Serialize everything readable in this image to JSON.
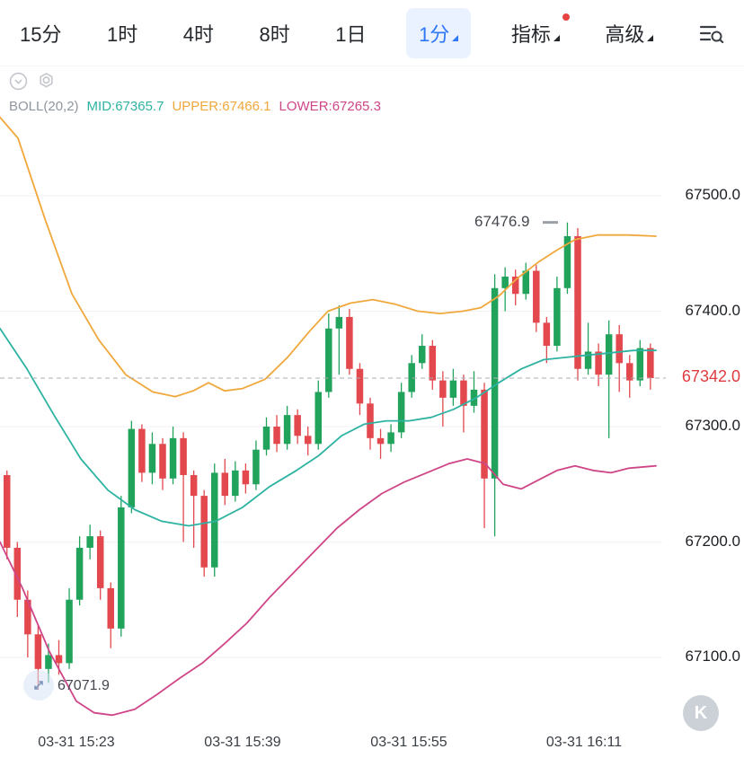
{
  "toolbar": {
    "timeframes": [
      {
        "label": "15分",
        "selected": false
      },
      {
        "label": "1时",
        "selected": false
      },
      {
        "label": "4时",
        "selected": false
      },
      {
        "label": "8时",
        "selected": false
      },
      {
        "label": "1日",
        "selected": false
      },
      {
        "label": "1分",
        "selected": true
      }
    ],
    "indicator_menu": "指标",
    "advanced_menu": "高级"
  },
  "chart": {
    "legend": {
      "name": "BOLL(20,2)",
      "mid": "MID:67365.7",
      "upper": "UPPER:67466.1",
      "lower": "LOWER:67265.3"
    },
    "current_price_label": "67342.0",
    "high_label": "67476.9",
    "low_label": "67071.9",
    "y_axis": [
      "67500.0",
      "67400.0",
      "67300.0",
      "67200.0",
      "67100.0"
    ],
    "x_axis": [
      "03-31 15:23",
      "03-31 15:39",
      "03-31 15:55",
      "03-31 16:11"
    ],
    "watermark": "K"
  },
  "colors": {
    "accent_blue": "#2e77f6",
    "tab_selected_bg": "#e9f2fe",
    "notification_dot": "#e64242",
    "candle_up": "#21a35c",
    "candle_down": "#e2484d",
    "band_upper": "#f0a83c",
    "band_mid": "#2eb3a2",
    "band_lower": "#cf4688",
    "current_price_red": "#e03b3f",
    "grid": "#f1f2f4"
  },
  "chart_data": {
    "type": "candlestick",
    "indicator": "BOLL(20,2)",
    "interval": "1分",
    "boll": {
      "mid": 67365.7,
      "upper": 67466.1,
      "lower": 67265.3
    },
    "current_price": 67342.0,
    "session_high": 67476.9,
    "session_low": 67071.9,
    "y_ticks": [
      67500,
      67400,
      67300,
      67200,
      67100
    ],
    "x_ticks": [
      "03-31 15:23",
      "03-31 15:39",
      "03-31 15:55",
      "03-31 16:11"
    ],
    "candles_format": [
      "open",
      "close",
      "high",
      "low"
    ],
    "candles": [
      [
        67258,
        67195,
        67262,
        67185
      ],
      [
        67195,
        67150,
        67200,
        67135
      ],
      [
        67150,
        67120,
        67158,
        67100
      ],
      [
        67120,
        67090,
        67128,
        67071.9
      ],
      [
        67090,
        67102,
        67112,
        67078
      ],
      [
        67102,
        67095,
        67115,
        67085
      ],
      [
        67095,
        67150,
        67160,
        67090
      ],
      [
        67150,
        67195,
        67205,
        67145
      ],
      [
        67195,
        67205,
        67215,
        67185
      ],
      [
        67205,
        67160,
        67210,
        67150
      ],
      [
        67160,
        67125,
        67165,
        67108
      ],
      [
        67125,
        67230,
        67240,
        67118
      ],
      [
        67230,
        67298,
        67305,
        67225
      ],
      [
        67298,
        67260,
        67302,
        67252
      ],
      [
        67260,
        67285,
        67295,
        67250
      ],
      [
        67285,
        67255,
        67290,
        67245
      ],
      [
        67255,
        67290,
        67300,
        67250
      ],
      [
        67290,
        67258,
        67295,
        67200
      ],
      [
        67258,
        67240,
        67262,
        67195
      ],
      [
        67240,
        67178,
        67245,
        67170
      ],
      [
        67178,
        67260,
        67268,
        67170
      ],
      [
        67260,
        67240,
        67272,
        67232
      ],
      [
        67240,
        67262,
        67270,
        67235
      ],
      [
        67262,
        67250,
        67268,
        67242
      ],
      [
        67250,
        67280,
        67288,
        67245
      ],
      [
        67280,
        67300,
        67308,
        67275
      ],
      [
        67300,
        67285,
        67310,
        67278
      ],
      [
        67285,
        67310,
        67318,
        67280
      ],
      [
        67310,
        67292,
        67315,
        67285
      ],
      [
        67292,
        67285,
        67300,
        67275
      ],
      [
        67285,
        67330,
        67340,
        67280
      ],
      [
        67330,
        67385,
        67398,
        67325
      ],
      [
        67385,
        67395,
        67405,
        67345
      ],
      [
        67395,
        67350,
        67402,
        67345
      ],
      [
        67350,
        67320,
        67355,
        67310
      ],
      [
        67320,
        67290,
        67325,
        67280
      ],
      [
        67290,
        67285,
        67298,
        67272
      ],
      [
        67285,
        67295,
        67302,
        67278
      ],
      [
        67295,
        67330,
        67338,
        67290
      ],
      [
        67330,
        67355,
        67362,
        67325
      ],
      [
        67355,
        67370,
        67380,
        67350
      ],
      [
        67370,
        67340,
        67375,
        67332
      ],
      [
        67340,
        67325,
        67348,
        67300
      ],
      [
        67325,
        67340,
        67350,
        67318
      ],
      [
        67340,
        67318,
        67345,
        67295
      ],
      [
        67318,
        67332,
        67348,
        67312
      ],
      [
        67332,
        67255,
        67338,
        67212
      ],
      [
        67255,
        67420,
        67432,
        67205
      ],
      [
        67420,
        67430,
        67438,
        67400
      ],
      [
        67430,
        67415,
        67436,
        67405
      ],
      [
        67415,
        67435,
        67442,
        67410
      ],
      [
        67435,
        67390,
        67440,
        67382
      ],
      [
        67390,
        67370,
        67395,
        67355
      ],
      [
        67370,
        67420,
        67430,
        67365
      ],
      [
        67420,
        67465,
        67476.9,
        67415
      ],
      [
        67465,
        67350,
        67472,
        67340
      ],
      [
        67350,
        67365,
        67390,
        67345
      ],
      [
        67365,
        67345,
        67372,
        67335
      ],
      [
        67345,
        67380,
        67392,
        67290
      ],
      [
        67380,
        67355,
        67388,
        67330
      ],
      [
        67355,
        67340,
        67362,
        67325
      ],
      [
        67340,
        67368,
        67375,
        67335
      ],
      [
        67368,
        67342,
        67372,
        67332
      ]
    ],
    "upper_band": [
      [
        0,
        67568
      ],
      [
        20,
        67550
      ],
      [
        50,
        67480
      ],
      [
        80,
        67415
      ],
      [
        110,
        67375
      ],
      [
        140,
        67345
      ],
      [
        170,
        67330
      ],
      [
        195,
        67326
      ],
      [
        215,
        67331
      ],
      [
        232,
        67338
      ],
      [
        250,
        67331
      ],
      [
        270,
        67333
      ],
      [
        295,
        67341
      ],
      [
        320,
        67360
      ],
      [
        345,
        67383
      ],
      [
        365,
        67400
      ],
      [
        390,
        67407
      ],
      [
        415,
        67410
      ],
      [
        440,
        67406
      ],
      [
        465,
        67400
      ],
      [
        490,
        67398
      ],
      [
        515,
        67400
      ],
      [
        535,
        67403
      ],
      [
        555,
        67413
      ],
      [
        575,
        67428
      ],
      [
        600,
        67443
      ],
      [
        620,
        67453
      ],
      [
        640,
        67462
      ],
      [
        665,
        67466
      ],
      [
        700,
        67466
      ],
      [
        730,
        67465
      ]
    ],
    "mid_band": [
      [
        0,
        67385
      ],
      [
        30,
        67350
      ],
      [
        60,
        67310
      ],
      [
        90,
        67272
      ],
      [
        120,
        67245
      ],
      [
        150,
        67228
      ],
      [
        180,
        67218
      ],
      [
        210,
        67214
      ],
      [
        240,
        67218
      ],
      [
        270,
        67230
      ],
      [
        300,
        67248
      ],
      [
        330,
        67262
      ],
      [
        355,
        67275
      ],
      [
        380,
        67292
      ],
      [
        405,
        67302
      ],
      [
        430,
        67305
      ],
      [
        455,
        67305
      ],
      [
        480,
        67308
      ],
      [
        505,
        67315
      ],
      [
        530,
        67325
      ],
      [
        555,
        67338
      ],
      [
        580,
        67350
      ],
      [
        605,
        67358
      ],
      [
        630,
        67360
      ],
      [
        655,
        67362
      ],
      [
        680,
        67364
      ],
      [
        705,
        67366
      ],
      [
        730,
        67366
      ]
    ],
    "lower_band": [
      [
        0,
        67200
      ],
      [
        25,
        67160
      ],
      [
        55,
        67105
      ],
      [
        85,
        67062
      ],
      [
        105,
        67052
      ],
      [
        125,
        67050
      ],
      [
        150,
        67055
      ],
      [
        175,
        67068
      ],
      [
        200,
        67082
      ],
      [
        225,
        67095
      ],
      [
        250,
        67112
      ],
      [
        275,
        67130
      ],
      [
        300,
        67152
      ],
      [
        325,
        67172
      ],
      [
        350,
        67192
      ],
      [
        375,
        67212
      ],
      [
        400,
        67228
      ],
      [
        425,
        67242
      ],
      [
        450,
        67252
      ],
      [
        475,
        67260
      ],
      [
        500,
        67268
      ],
      [
        520,
        67272
      ],
      [
        540,
        67268
      ],
      [
        560,
        67250
      ],
      [
        580,
        67246
      ],
      [
        600,
        67254
      ],
      [
        620,
        67262
      ],
      [
        640,
        67266
      ],
      [
        660,
        67262
      ],
      [
        680,
        67260
      ],
      [
        700,
        67264
      ],
      [
        730,
        67266
      ]
    ]
  }
}
